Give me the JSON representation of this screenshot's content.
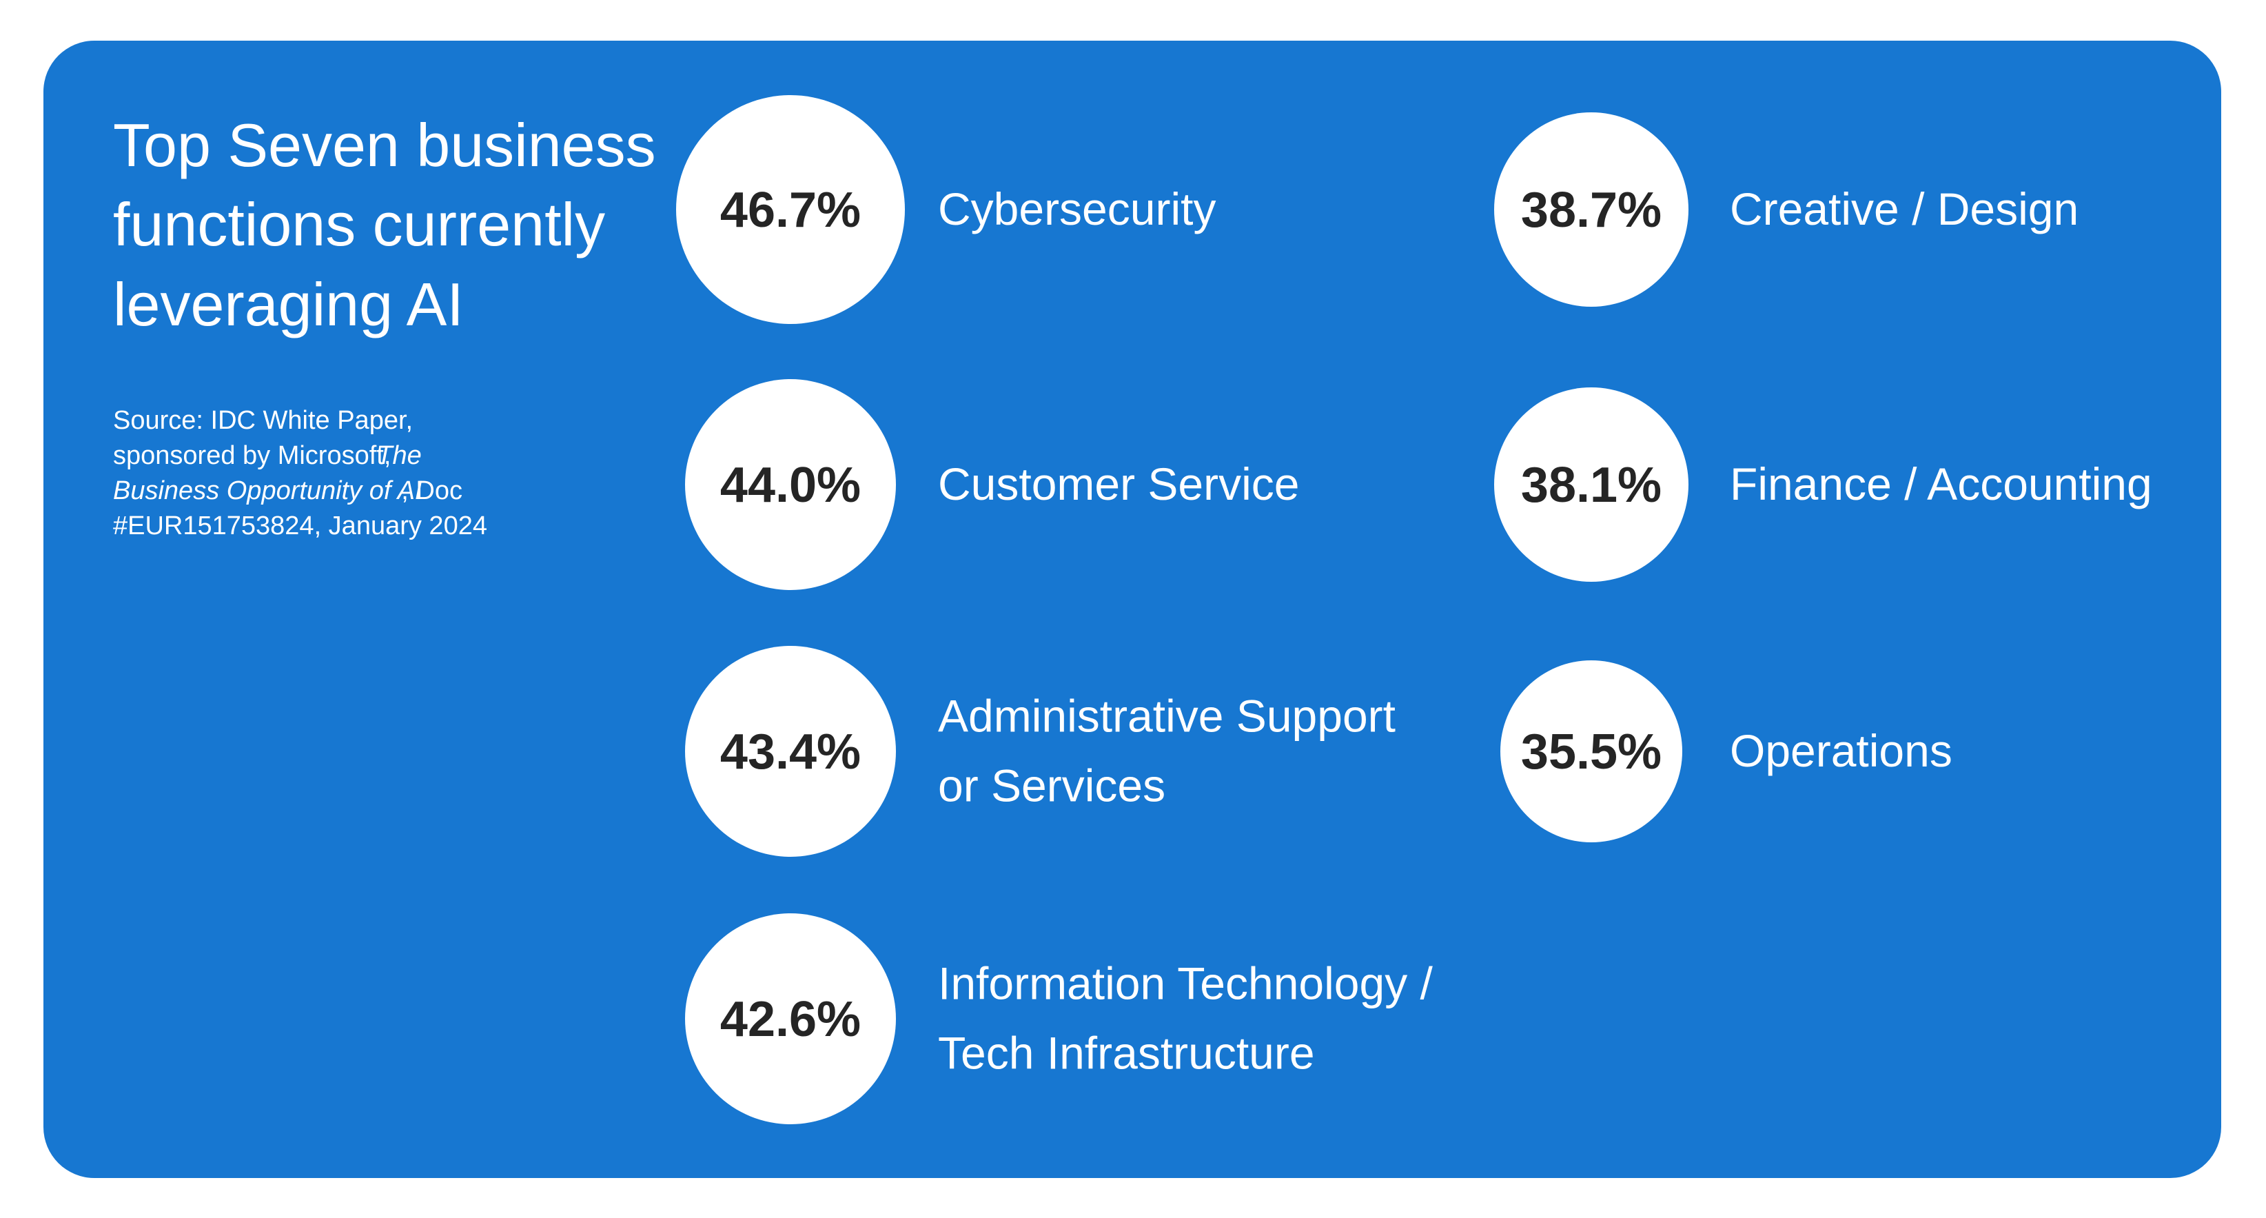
{
  "title_lines": [
    "Top Seven business",
    "functions currently",
    "leveraging AI"
  ],
  "source": {
    "prefix": "Source: IDC White Paper, sponsored by Microsoft, ",
    "italic": "The Business Opportunity of AI",
    "suffix": ", Doc #EUR151753824, January 2024"
  },
  "items": [
    {
      "value": "46.7%",
      "label_lines": [
        "Cybersecurity"
      ]
    },
    {
      "value": "44.0%",
      "label_lines": [
        "Customer Service"
      ]
    },
    {
      "value": "43.4%",
      "label_lines": [
        "Administrative Support",
        "or Services"
      ]
    },
    {
      "value": "42.6%",
      "label_lines": [
        "Information Technology /",
        "Tech Infrastructure"
      ]
    },
    {
      "value": "38.7%",
      "label_lines": [
        "Creative / Design"
      ]
    },
    {
      "value": "38.1%",
      "label_lines": [
        "Finance / Accounting"
      ]
    },
    {
      "value": "35.5%",
      "label_lines": [
        "Operations"
      ]
    }
  ]
}
